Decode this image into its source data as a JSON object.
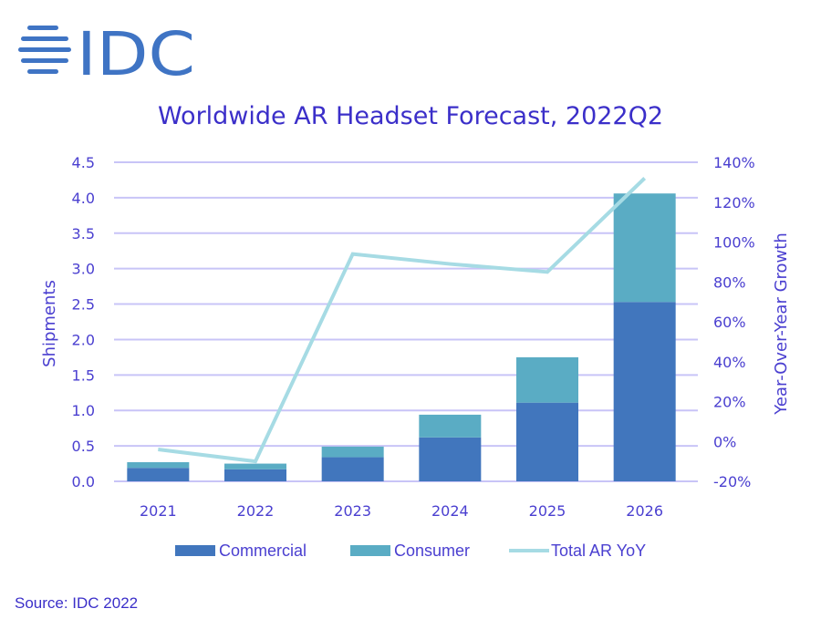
{
  "logo": {
    "text": "IDC",
    "icon": "globe-stripes-icon",
    "color": "#3f74c4"
  },
  "source": "Source: IDC 2022",
  "colors": {
    "commercial": "#4176bd",
    "consumer": "#5aacc4",
    "yoy_line": "#a6dbe4",
    "grid": "#c8c4f7",
    "text": "#3b2fc9"
  },
  "chart_data": {
    "type": "bar",
    "stacked": true,
    "title": "Worldwide AR Headset Forecast, 2022Q2",
    "xlabel": "",
    "ylabel": "Shipments",
    "y2label": "Year-Over-Year Growth",
    "categories": [
      "2021",
      "2022",
      "2023",
      "2024",
      "2025",
      "2026"
    ],
    "series": [
      {
        "name": "Commercial",
        "type": "bar",
        "axis": "left",
        "values": [
          0.19,
          0.17,
          0.34,
          0.62,
          1.11,
          2.53
        ]
      },
      {
        "name": "Consumer",
        "type": "bar",
        "axis": "left",
        "values": [
          0.08,
          0.08,
          0.15,
          0.32,
          0.64,
          1.53
        ]
      },
      {
        "name": "Total AR YoY",
        "type": "line",
        "axis": "right",
        "unit": "%",
        "values": [
          -4,
          -10,
          94,
          89,
          85,
          132
        ]
      }
    ],
    "ylim": [
      0,
      4.5
    ],
    "yticks": [
      "0.0",
      "0.5",
      "1.0",
      "1.5",
      "2.0",
      "2.5",
      "3.0",
      "3.5",
      "4.0",
      "4.5"
    ],
    "y2lim": [
      -20,
      140
    ],
    "y2ticks": [
      "-20%",
      "0%",
      "20%",
      "40%",
      "60%",
      "80%",
      "100%",
      "120%",
      "140%"
    ],
    "grid": true,
    "legend_position": "bottom"
  }
}
